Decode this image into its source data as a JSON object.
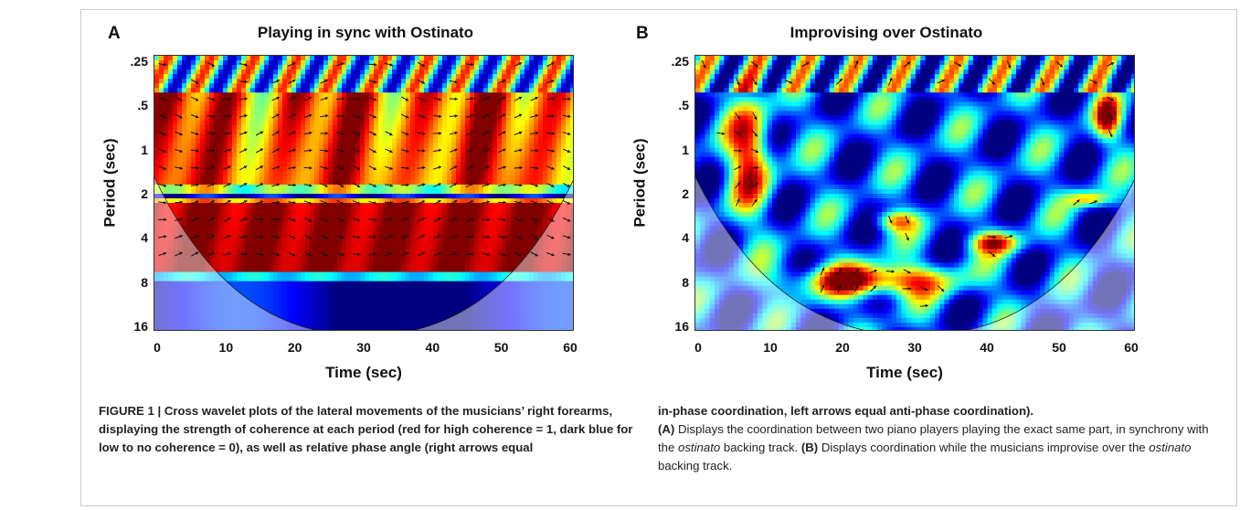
{
  "figure": {
    "panel_a": {
      "letter": "A",
      "title": "Playing in sync with Ostinato",
      "ylabel": "Period (sec)",
      "xlabel": "Time (sec)",
      "yticks": [
        ".25",
        ".5",
        "1",
        "2",
        "4",
        "8",
        "16"
      ],
      "xticks": [
        "0",
        "10",
        "20",
        "30",
        "40",
        "50",
        "60"
      ]
    },
    "panel_b": {
      "letter": "B",
      "title": "Improvising over Ostinato",
      "ylabel": "Period (sec)",
      "xlabel": "Time (sec)",
      "yticks": [
        ".25",
        ".5",
        "1",
        "2",
        "4",
        "8",
        "16"
      ],
      "xticks": [
        "0",
        "10",
        "20",
        "30",
        "40",
        "50",
        "60"
      ]
    }
  },
  "caption": {
    "left": "FIGURE 1 | Cross wavelet plots of the lateral movements of the musicians’ right forearms, displaying the strength of coherence at each period (red for high coherence = 1, dark blue for low to no coherence = 0), as well as relative phase angle (right arrows equal",
    "right_lead": "in-phase coordination, left arrows equal anti-phase coordination).",
    "a_marker": "(A)",
    "a_text_1": " Displays the coordination between two piano players playing the exact same part, in synchrony with the ",
    "a_italic": "ostinato",
    "a_text_2": " backing track. ",
    "b_marker": "(B)",
    "b_text_1": " Displays coordination while the musicians improvise over the ",
    "b_italic": "ostinato",
    "b_text_2": " backing track."
  },
  "colors": {
    "high_coherence": "#8b0000",
    "mid_coherence": "#ffff00",
    "low_coherence": "#00008b",
    "cone_shade": "#ffffff",
    "arrow": "#111111"
  }
}
